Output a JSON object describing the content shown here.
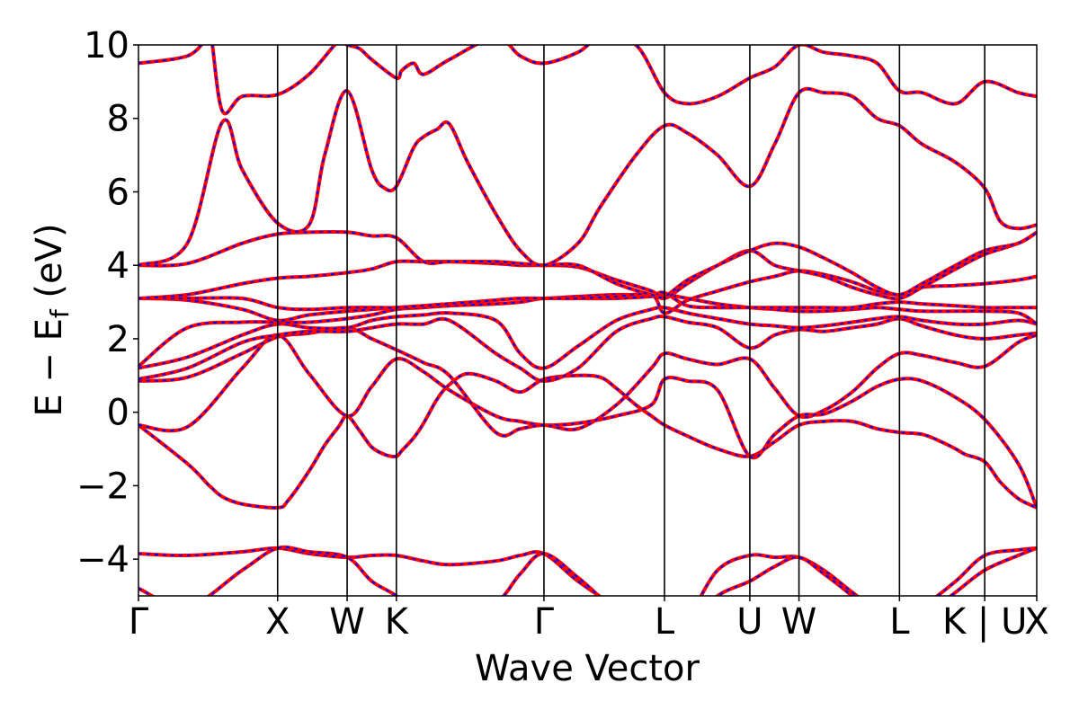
{
  "chart_data": {
    "type": "line",
    "title": "",
    "xlabel": "Wave Vector",
    "ylabel": "E − E",
    "ylabel_sub": "f",
    "ylabel_unit": " (eV)",
    "ylim": [
      -5,
      10
    ],
    "yticks": [
      -4,
      -2,
      0,
      2,
      4,
      6,
      8,
      10
    ],
    "ytick_labels": [
      "−4",
      "−2",
      "0",
      "2",
      "4",
      "6",
      "8",
      "10"
    ],
    "x_range": [
      0,
      1
    ],
    "kpoints": [
      {
        "label": "Γ",
        "x": 0.0
      },
      {
        "label": "X",
        "x": 0.1549
      },
      {
        "label": "W",
        "x": 0.2323
      },
      {
        "label": "K",
        "x": 0.2871
      },
      {
        "label": "Γ",
        "x": 0.4514
      },
      {
        "label": "L",
        "x": 0.5856
      },
      {
        "label": "U",
        "x": 0.6806
      },
      {
        "label": "W",
        "x": 0.7353
      },
      {
        "label": "L",
        "x": 0.8472
      },
      {
        "label": "K | U",
        "x": 0.9421
      },
      {
        "label": "X",
        "x": 1.0
      }
    ],
    "grid": false,
    "style_note": "solid red bands overlaid with dashed blue bands (identical)",
    "colors": {
      "band_solid": "#ff0000",
      "band_dashed": "#0000ff",
      "kline": "#000000"
    },
    "series": [
      {
        "x": [
          0,
          0.0545,
          0.0768,
          0.0811,
          0.0934,
          0.1155,
          0.1549,
          0.1667,
          0.1899,
          0.2073,
          0.2226,
          0.2323,
          0.246,
          0.2597,
          0.2741,
          0.2871,
          0.293,
          0.3063,
          0.3174,
          0.3323,
          0.346,
          0.3666,
          0.3978,
          0.425,
          0.4514,
          0.4893,
          0.5143,
          0.532,
          0.5538,
          0.571,
          0.5856,
          0.6112,
          0.6447,
          0.6806,
          0.7083,
          0.7353,
          0.763,
          0.7945,
          0.8223,
          0.8472,
          0.8723,
          0.8934,
          0.9098,
          0.9206,
          0.9421,
          0.9594,
          0.9794,
          1.0
        ],
        "y": [
          -0.35,
          -1.4,
          -1.95,
          -2.05,
          -2.3,
          -2.5,
          -2.6,
          -2.4,
          -1.6,
          -0.9,
          -0.4,
          -0.1,
          -0.5,
          -0.95,
          -1.15,
          -1.2,
          -1.05,
          -0.7,
          -0.3,
          0.35,
          0.75,
          1.05,
          0.85,
          0.55,
          0.9,
          1.0,
          0.95,
          0.65,
          0.2,
          -0.1,
          -0.35,
          -0.65,
          -1.0,
          -1.2,
          -0.8,
          -0.35,
          -0.25,
          -0.25,
          -0.45,
          -0.55,
          -0.6,
          -0.8,
          -1.0,
          -1.15,
          -1.35,
          -1.9,
          -2.35,
          -2.6
        ]
      },
      {
        "x": [
          0,
          0.0545,
          0.1155,
          0.1549,
          0.1899,
          0.2323,
          0.2597,
          0.2871,
          0.3174,
          0.346,
          0.3978,
          0.425,
          0.4514,
          0.4893,
          0.532,
          0.571,
          0.5856,
          0.6112,
          0.6447,
          0.6806,
          0.7083,
          0.7353,
          0.763,
          0.7945,
          0.8223,
          0.8472,
          0.8723,
          0.9098,
          0.9421,
          0.9794,
          1.0
        ],
        "y": [
          -0.35,
          -0.4,
          1.2,
          2.1,
          1.05,
          -0.1,
          0.7,
          1.45,
          1.1,
          0.6,
          -0.1,
          -0.25,
          -0.35,
          -0.3,
          -0.1,
          0.2,
          0.9,
          0.85,
          0.6,
          -1.2,
          -0.6,
          -0.1,
          -0.05,
          0.3,
          0.7,
          0.9,
          0.85,
          0.4,
          -0.2,
          -1.4,
          -2.6
        ]
      },
      {
        "x": [
          0,
          0.0545,
          0.1155,
          0.1549,
          0.1899,
          0.2323,
          0.2597,
          0.2871,
          0.3174,
          0.346,
          0.3978,
          0.425,
          0.4514,
          0.4893,
          0.532,
          0.571,
          0.5856,
          0.6112,
          0.6447,
          0.6806,
          0.7083,
          0.7353,
          0.763,
          0.7945,
          0.8223,
          0.8472,
          0.8723,
          0.9098,
          0.9421,
          0.9794,
          1.0
        ],
        "y": [
          0.85,
          0.95,
          1.6,
          2.05,
          2.15,
          2.3,
          2.0,
          1.7,
          1.35,
          1.0,
          -0.55,
          -0.45,
          -0.35,
          -0.45,
          0.2,
          1.2,
          1.6,
          1.45,
          1.3,
          1.45,
          0.65,
          -0.1,
          0.05,
          0.55,
          1.2,
          1.6,
          1.55,
          1.35,
          1.25,
          1.9,
          2.1
        ]
      },
      {
        "x": [
          0,
          0.0545,
          0.1155,
          0.1549,
          0.1899,
          0.2323,
          0.2597,
          0.2871,
          0.3174,
          0.346,
          0.3978,
          0.425,
          0.4514,
          0.4893,
          0.532,
          0.571,
          0.5856,
          0.6112,
          0.6447,
          0.6806,
          0.7083,
          0.7353,
          0.763,
          0.7945,
          0.8223,
          0.8472,
          0.8723,
          0.9098,
          0.9421,
          0.9794,
          1.0
        ],
        "y": [
          0.9,
          1.2,
          1.9,
          2.1,
          2.2,
          2.2,
          2.3,
          2.4,
          2.4,
          2.5,
          1.6,
          1.2,
          0.85,
          1.2,
          2.2,
          2.55,
          2.6,
          2.45,
          2.3,
          1.75,
          2.1,
          2.25,
          2.2,
          2.3,
          2.4,
          2.55,
          2.35,
          2.1,
          2.0,
          2.1,
          2.15
        ]
      },
      {
        "x": [
          0,
          0.0545,
          0.1155,
          0.1549,
          0.1899,
          0.2323,
          0.2597,
          0.2871,
          0.3174,
          0.346,
          0.3978,
          0.425,
          0.4514,
          0.4893,
          0.532,
          0.571,
          0.5856,
          0.6112,
          0.6447,
          0.6806,
          0.7083,
          0.7353,
          0.763,
          0.7945,
          0.8223,
          0.8472,
          0.8723,
          0.9098,
          0.9421,
          0.9794,
          1.0
        ],
        "y": [
          1.2,
          1.5,
          2.1,
          2.4,
          2.3,
          2.3,
          2.5,
          2.6,
          2.65,
          2.7,
          2.5,
          1.6,
          1.2,
          1.8,
          2.5,
          2.8,
          2.85,
          2.7,
          2.55,
          2.4,
          2.35,
          2.3,
          2.35,
          2.45,
          2.55,
          2.6,
          2.5,
          2.4,
          2.4,
          2.5,
          2.4
        ]
      },
      {
        "x": [
          0,
          0.0545,
          0.1155,
          0.1549,
          0.1899,
          0.2323,
          0.2597,
          0.2871,
          0.3174,
          0.346,
          0.3978,
          0.425,
          0.4514,
          0.4893,
          0.532,
          0.571,
          0.5856,
          0.6112,
          0.6447,
          0.6806,
          0.7083,
          0.7353,
          0.763,
          0.7945,
          0.8223,
          0.8472,
          0.8723,
          0.9098,
          0.9421,
          0.9794,
          1.0
        ],
        "y": [
          1.25,
          2.3,
          2.45,
          2.45,
          2.45,
          2.55,
          2.65,
          2.8,
          2.85,
          2.9,
          2.95,
          3.0,
          3.1,
          3.1,
          3.1,
          3.15,
          3.2,
          3.1,
          2.95,
          2.85,
          2.8,
          2.75,
          2.75,
          2.8,
          2.85,
          2.8,
          2.75,
          2.75,
          2.75,
          2.7,
          2.4
        ]
      },
      {
        "x": [
          0,
          0.0545,
          0.1155,
          0.1549,
          0.1899,
          0.2323,
          0.2597,
          0.2871,
          0.3174,
          0.346,
          0.3978,
          0.425,
          0.4514,
          0.4893,
          0.532,
          0.571,
          0.5856,
          0.6112,
          0.6447,
          0.6806,
          0.7083,
          0.7353,
          0.763,
          0.7945,
          0.8223,
          0.8472,
          0.8723,
          0.9098,
          0.9421,
          0.9794,
          1.0
        ],
        "y": [
          3.1,
          3.05,
          2.8,
          2.5,
          2.65,
          2.75,
          2.8,
          2.85,
          2.9,
          2.95,
          3.05,
          3.1,
          3.1,
          3.15,
          3.2,
          3.2,
          3.25,
          2.9,
          2.85,
          2.85,
          2.85,
          2.85,
          2.85,
          2.85,
          2.95,
          3.0,
          2.95,
          2.9,
          2.85,
          2.85,
          2.85
        ]
      },
      {
        "x": [
          0,
          0.0545,
          0.1155,
          0.1549,
          0.1899,
          0.2323,
          0.2597,
          0.2871,
          0.3174,
          0.346,
          0.3978,
          0.425,
          0.4514,
          0.4893,
          0.532,
          0.571,
          0.5856,
          0.6112,
          0.6447,
          0.6806,
          0.7083,
          0.7353,
          0.763,
          0.7945,
          0.8223,
          0.8472,
          0.8723,
          0.9098,
          0.9421,
          0.9794,
          1.0
        ],
        "y": [
          3.1,
          3.1,
          3.1,
          2.85,
          2.8,
          2.85,
          2.85,
          2.85,
          2.9,
          2.95,
          3.05,
          3.1,
          3.1,
          3.1,
          3.15,
          3.2,
          2.7,
          3.05,
          3.3,
          3.55,
          3.7,
          3.85,
          3.75,
          3.55,
          3.3,
          3.2,
          3.4,
          3.45,
          3.5,
          3.6,
          3.7
        ]
      },
      {
        "x": [
          0,
          0.0545,
          0.1155,
          0.1549,
          0.1899,
          0.2323,
          0.2597,
          0.2871,
          0.3174,
          0.346,
          0.3978,
          0.425,
          0.4514,
          0.4893,
          0.532,
          0.571,
          0.5856,
          0.6112,
          0.6447,
          0.6806,
          0.7083,
          0.7353,
          0.763,
          0.7945,
          0.8223,
          0.8472,
          0.8723,
          0.9098,
          0.9421,
          0.9794,
          1.0
        ],
        "y": [
          3.1,
          3.2,
          3.5,
          3.65,
          3.7,
          3.8,
          3.9,
          4.1,
          4.1,
          4.1,
          4.05,
          4.0,
          4.0,
          3.95,
          3.6,
          3.3,
          3.1,
          3.5,
          4.0,
          4.4,
          4.0,
          3.85,
          3.7,
          3.4,
          3.2,
          3.1,
          3.4,
          3.9,
          4.3,
          4.6,
          4.9
        ]
      },
      {
        "x": [
          0,
          0.0545,
          0.1155,
          0.1549,
          0.1899,
          0.2323,
          0.2597,
          0.2871,
          0.3174,
          0.346,
          0.3978,
          0.425,
          0.4514,
          0.4893,
          0.532,
          0.571,
          0.5856,
          0.6112,
          0.6447,
          0.6806,
          0.7083,
          0.7353,
          0.763,
          0.7945,
          0.8223,
          0.8472,
          0.8723,
          0.9098,
          0.9421,
          0.9794,
          1.0
        ],
        "y": [
          4.0,
          4.05,
          4.6,
          4.85,
          4.9,
          4.9,
          4.8,
          4.75,
          4.1,
          4.1,
          4.1,
          4.05,
          4.0,
          4.0,
          3.5,
          3.2,
          3.15,
          3.6,
          4.0,
          4.4,
          4.6,
          4.5,
          4.2,
          3.8,
          3.4,
          3.2,
          3.5,
          4.0,
          4.4,
          4.6,
          4.9
        ]
      },
      {
        "x": [
          0,
          0.0545,
          0.0934,
          0.1155,
          0.1549,
          0.1899,
          0.2073,
          0.2323,
          0.2597,
          0.2741,
          0.2871,
          0.3063,
          0.3174,
          0.3323,
          0.346,
          0.3666,
          0.3978,
          0.425,
          0.4514,
          0.4893,
          0.5143,
          0.5538,
          0.5856,
          0.6112,
          0.6447,
          0.6806,
          0.7083,
          0.7353,
          0.763,
          0.7945,
          0.8223,
          0.8472,
          0.8723,
          0.9098,
          0.9421,
          0.9594,
          0.9794,
          1.0
        ],
        "y": [
          4.0,
          4.6,
          7.9,
          6.6,
          5.15,
          5.1,
          7.0,
          8.75,
          6.6,
          6.1,
          6.15,
          7.2,
          7.5,
          7.7,
          7.85,
          6.8,
          5.4,
          4.4,
          4.0,
          4.6,
          5.6,
          7.0,
          7.8,
          7.6,
          7.0,
          6.15,
          7.3,
          8.7,
          8.7,
          8.6,
          8.0,
          7.8,
          7.3,
          6.8,
          6.1,
          5.2,
          5.0,
          5.1
        ]
      },
      {
        "x": [
          0,
          0.0545,
          0.0768,
          0.0811,
          0.0934,
          0.1155,
          0.1549,
          0.1899,
          0.2226,
          0.2323,
          0.246,
          0.2597,
          0.2871,
          0.293,
          0.3063,
          0.3174,
          0.346,
          0.3978,
          0.425,
          0.4514,
          0.4893,
          0.5143,
          0.5538,
          0.5856,
          0.6112,
          0.6447,
          0.6806,
          0.7083,
          0.7353,
          0.763,
          0.7945,
          0.8223,
          0.8472,
          0.8723,
          0.9098,
          0.9421,
          0.9794,
          1.0
        ],
        "y": [
          9.5,
          9.7,
          10.2,
          10.2,
          8.2,
          8.6,
          8.65,
          9.2,
          10.1,
          10.0,
          9.9,
          9.6,
          9.1,
          9.3,
          9.5,
          9.2,
          9.6,
          10.2,
          9.7,
          9.5,
          9.8,
          10.2,
          10.0,
          8.7,
          8.4,
          8.6,
          9.1,
          9.4,
          10.0,
          9.8,
          9.7,
          9.5,
          8.75,
          8.7,
          8.4,
          9.0,
          8.7,
          8.6
        ]
      },
      {
        "x": [
          0,
          0.0545,
          0.1155,
          0.1549,
          0.1899,
          0.2323,
          0.2597,
          0.2871,
          0.3174,
          0.346,
          0.3978,
          0.425,
          0.4514,
          0.4893,
          0.532,
          0.571,
          0.5856,
          0.6112,
          0.6447,
          0.6806,
          0.7083,
          0.7353,
          0.763,
          0.7945,
          0.8223,
          0.8472,
          0.8723,
          0.9098,
          0.9421,
          0.9794,
          1.0
        ],
        "y": [
          -3.85,
          -3.9,
          -3.8,
          -3.7,
          -3.85,
          -3.95,
          -3.9,
          -3.9,
          -4.05,
          -4.15,
          -4.05,
          -3.9,
          -3.85,
          -4.6,
          -5.3,
          -5.8,
          -5.9,
          -5.6,
          -4.3,
          -3.9,
          -3.95,
          -3.95,
          -4.3,
          -4.9,
          -5.4,
          -5.5,
          -5.3,
          -4.6,
          -3.9,
          -3.75,
          -3.7
        ]
      },
      {
        "x": [
          0,
          0.0545,
          0.1155,
          0.1549,
          0.1899,
          0.2323,
          0.2597,
          0.2871,
          0.3174,
          0.346,
          0.3978,
          0.425,
          0.4514,
          0.4893,
          0.532,
          0.571,
          0.5856,
          0.6112,
          0.6447,
          0.6806,
          0.7083,
          0.7353,
          0.763,
          0.7945,
          0.8223,
          0.8472,
          0.8723,
          0.9098,
          0.9421,
          0.9794,
          1.0
        ],
        "y": [
          -4.8,
          -5.3,
          -4.3,
          -3.7,
          -3.8,
          -3.95,
          -4.6,
          -5.0,
          -5.6,
          -5.8,
          -5.2,
          -4.4,
          -3.85,
          -4.5,
          -5.4,
          -5.9,
          -6.0,
          -5.8,
          -5.0,
          -4.6,
          -4.2,
          -3.95,
          -4.4,
          -5.0,
          -5.6,
          -5.9,
          -5.6,
          -4.9,
          -4.3,
          -3.9,
          -3.7
        ]
      }
    ]
  }
}
